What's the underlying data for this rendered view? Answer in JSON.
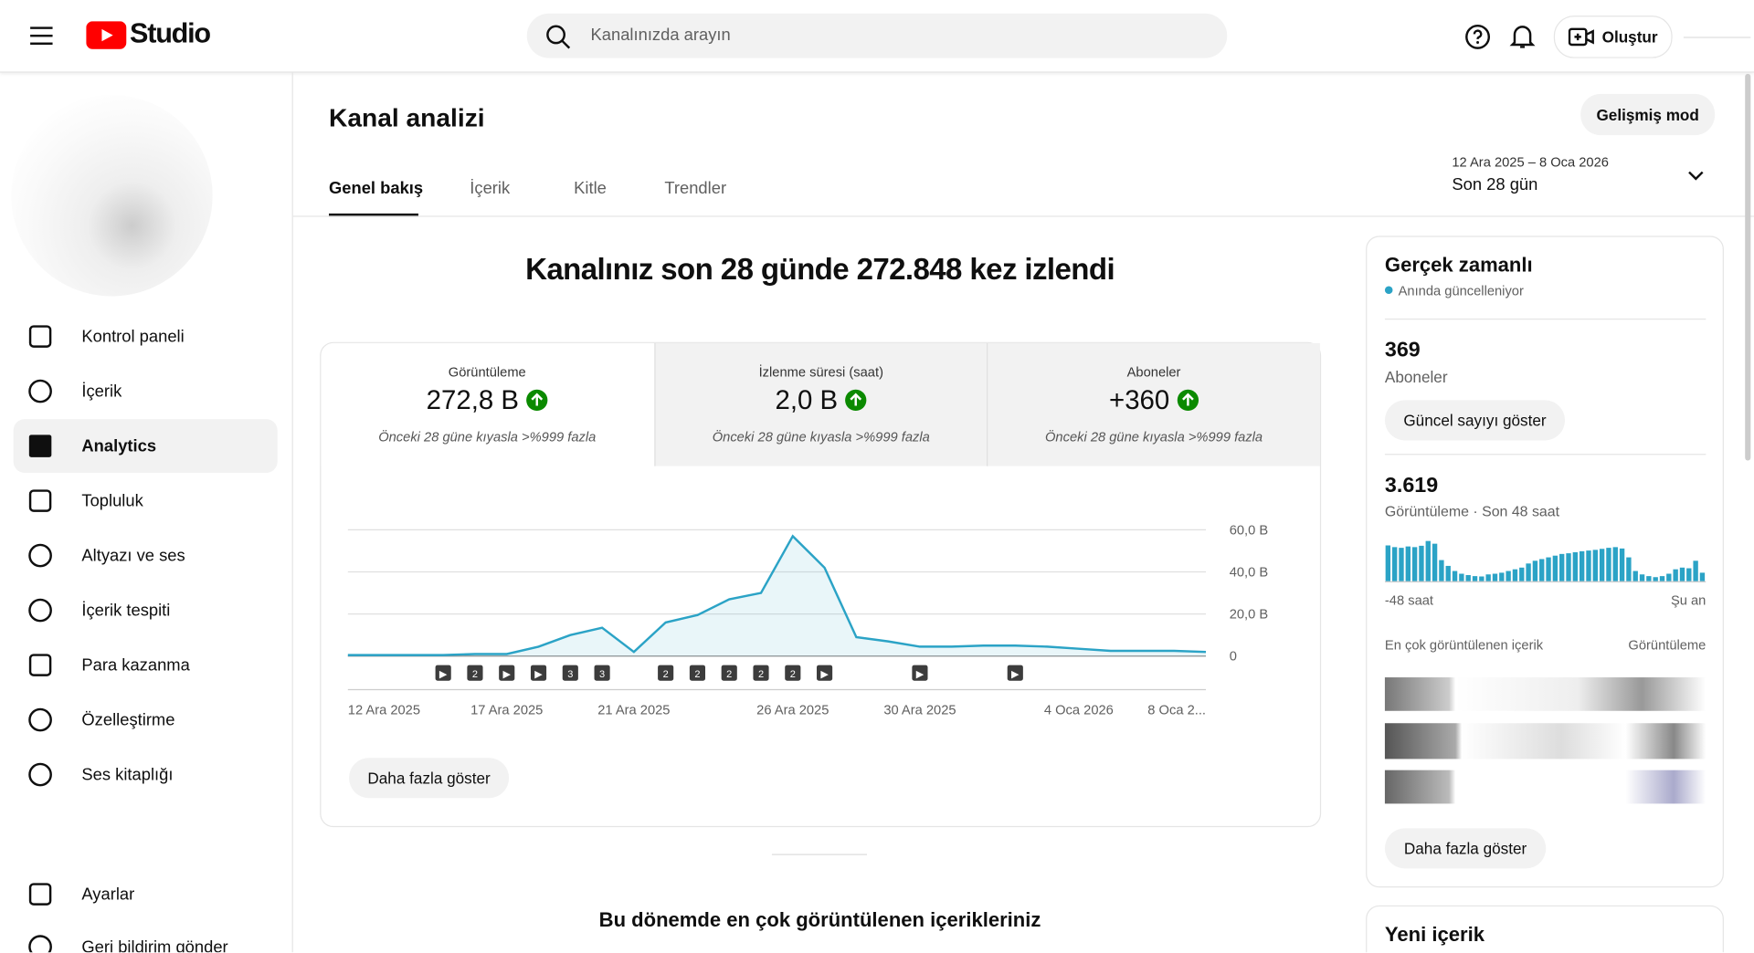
{
  "header": {
    "logo_text": "Studio",
    "search_placeholder": "Kanalınızda arayın",
    "create_button": "Oluştur"
  },
  "sidebar": {
    "items": [
      "Kontrol paneli",
      "İçerik",
      "Analytics",
      "Topluluk",
      "Altyazı ve ses",
      "İçerik tespiti",
      "Para kazanma",
      "Özelleştirme",
      "Ses kitaplığı"
    ],
    "bottom_items": [
      "Ayarlar",
      "Geri bildirim gönder"
    ]
  },
  "page": {
    "title": "Kanal analizi",
    "advanced_button": "Gelişmiş mod",
    "tabs": [
      "Genel bakış",
      "İçerik",
      "Kitle",
      "Trendler"
    ],
    "date_range": "12 Ara 2025 – 8 Oca 2026",
    "period": "Son 28 gün"
  },
  "overview": {
    "headline": "Kanalınız son 28 günde 272.848 kez izlendi",
    "metrics": [
      {
        "label": "Görüntüleme",
        "value": "272,8 B",
        "note": "Önceki 28 güne kıyasla >%999 fazla"
      },
      {
        "label": "İzlenme süresi (saat)",
        "value": "2,0 B",
        "note": "Önceki 28 güne kıyasla >%999 fazla"
      },
      {
        "label": "Aboneler",
        "value": "+360",
        "note": "Önceki 28 güne kıyasla >%999 fazla"
      }
    ],
    "chart": {
      "type": "line",
      "color": "#2ba3c6",
      "categories": [
        "12 Ara 2025",
        null,
        null,
        null,
        null,
        "17 Ara 2025",
        null,
        null,
        null,
        "21 Ara 2025",
        null,
        null,
        null,
        null,
        "26 Ara 2025",
        null,
        null,
        null,
        "30 Ara 2025",
        null,
        null,
        null,
        null,
        "4 Oca 2026",
        null,
        null,
        null,
        "8 Oca 2..."
      ],
      "values": [
        0.5,
        0.5,
        0.5,
        0.5,
        1,
        1,
        4.5,
        10,
        13.5,
        2,
        16,
        19.5,
        27,
        30,
        57,
        42,
        9,
        7,
        4.5,
        4.5,
        5,
        5,
        4.5,
        3.5,
        2.5,
        2.5,
        2.5,
        2
      ],
      "markers": [
        null,
        null,
        null,
        "▶",
        "2",
        "▶",
        "▶",
        "3",
        "3",
        null,
        "2",
        "2",
        "2",
        "2",
        "2",
        "▶",
        null,
        null,
        "▶",
        null,
        null,
        "▶",
        null,
        null,
        null,
        null,
        null,
        null
      ],
      "ylim": [
        0,
        60
      ],
      "yticks": [
        0,
        {
          "value": 20,
          "label": "20,0 B"
        },
        {
          "value": 40,
          "label": "40,0 B"
        },
        {
          "value": 60,
          "label": "60,0 B"
        }
      ],
      "grid": true
    },
    "more_button": "Daha fazla göster",
    "top_content_title": "Bu dönemde en çok görüntülenen içerikleriniz"
  },
  "realtime": {
    "title": "Gerçek zamanlı",
    "subtitle": "Anında güncelleniyor",
    "subscribers": "369",
    "subscribers_label": "Aboneler",
    "show_count_button": "Güncel sayıyı göster",
    "views": "3.619",
    "views_label": "Görüntüleme · Son 48 saat",
    "bars": {
      "type": "bar",
      "color": "#2ba3c6",
      "values": [
        105,
        100,
        98,
        102,
        100,
        104,
        118,
        110,
        62,
        45,
        30,
        22,
        18,
        15,
        14,
        20,
        22,
        25,
        30,
        35,
        40,
        52,
        60,
        65,
        70,
        75,
        80,
        82,
        85,
        88,
        90,
        92,
        95,
        98,
        100,
        96,
        70,
        30,
        20,
        15,
        12,
        15,
        22,
        35,
        40,
        38,
        60,
        25
      ]
    },
    "axis_start": "-48 saat",
    "axis_end": "Şu an",
    "top_content_label": "En çok görüntülenen içerik",
    "top_content_metric": "Görüntüleme",
    "more_button": "Daha fazla göster"
  },
  "new_content": {
    "title": "Yeni içerik"
  }
}
